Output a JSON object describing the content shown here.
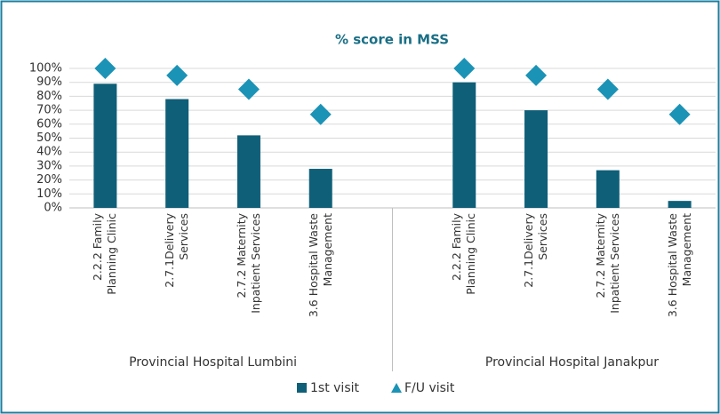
{
  "chart_data": {
    "type": "bar",
    "title": "% score in MSS",
    "categories": [
      "2.2.2 Family Planning Clinic",
      "2.7.1Delivery Services",
      "2.7.2 Maternity Inpatient Services",
      "3.6 Hospital Waste Management",
      null,
      "2.2.2 Family Planning Clinic",
      "2.7.1Delivery Services",
      "2.7.2 Maternity Inpatient Services",
      "3.6 Hospital Waste Management"
    ],
    "groups": [
      "Provincial Hospital Lumbini",
      "Provincial Hospital Janakpur"
    ],
    "series": [
      {
        "name": "1st visit",
        "color": "#0f5f78",
        "marker": "bar",
        "values": [
          89,
          78,
          52,
          28,
          null,
          90,
          70,
          27,
          5
        ]
      },
      {
        "name": "F/U visit",
        "color": "#1b93b6",
        "marker": "diamond",
        "values": [
          100,
          95,
          85,
          67,
          null,
          100,
          95,
          85,
          67
        ]
      }
    ],
    "ylim": [
      0,
      100
    ],
    "yticks": [
      {
        "value": 0,
        "label": "0%"
      },
      {
        "value": 10,
        "label": "10%"
      },
      {
        "value": 20,
        "label": "20%"
      },
      {
        "value": 30,
        "label": "30%"
      },
      {
        "value": 40,
        "label": "40%"
      },
      {
        "value": 50,
        "label": "50%"
      },
      {
        "value": 60,
        "label": "60%"
      },
      {
        "value": 70,
        "label": "70%"
      },
      {
        "value": 80,
        "label": "80%"
      },
      {
        "value": 90,
        "label": "90%"
      },
      {
        "value": 100,
        "label": "100%"
      }
    ],
    "grid": true
  }
}
